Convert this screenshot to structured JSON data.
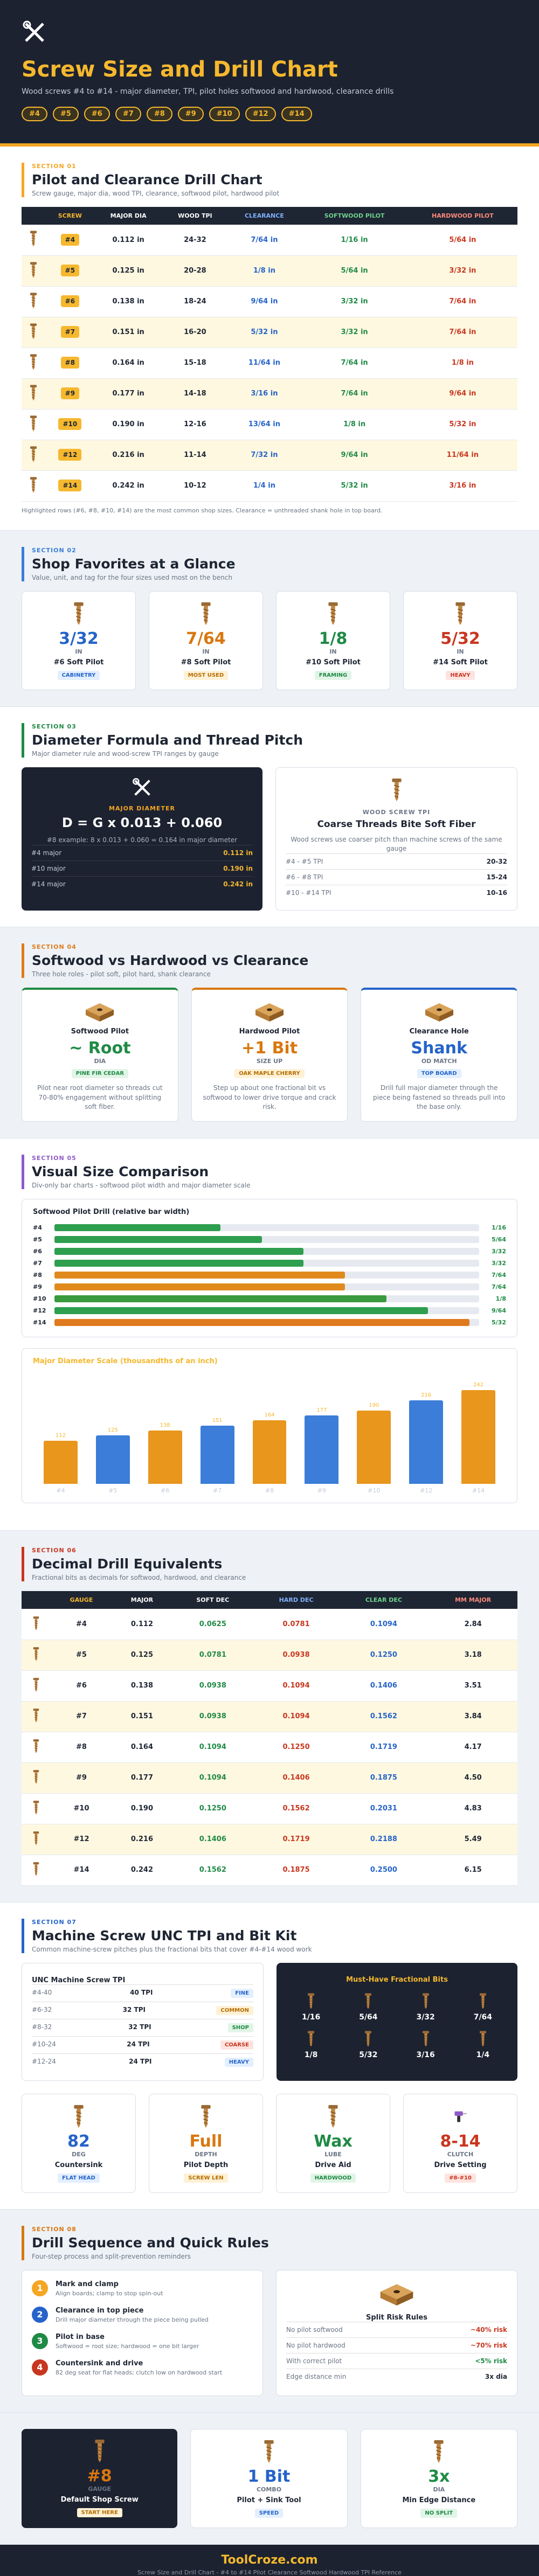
{
  "header": {
    "title": "Screw Size and Drill Chart",
    "subtitle": "Wood screws #4 to #14 - major diameter, TPI, pilot holes softwood and hardwood, clearance drills",
    "chips": [
      "#4",
      "#5",
      "#6",
      "#7",
      "#8",
      "#9",
      "#10",
      "#12",
      "#14"
    ]
  },
  "section1": {
    "label": "SECTION 01",
    "title": "Pilot and Clearance Drill Chart",
    "subtitle": "Screw gauge, major dia, wood TPI, clearance, softwood pilot, hardwood pilot",
    "columns": [
      "SCREW",
      "MAJOR DIA",
      "WOOD TPI",
      "CLEARANCE",
      "SOFTWOOD PILOT",
      "HARDWOOD PILOT"
    ],
    "rows": [
      [
        "#4",
        "0.112 in",
        "24-32",
        "7/64 in",
        "1/16 in",
        "5/64 in"
      ],
      [
        "#5",
        "0.125 in",
        "20-28",
        "1/8 in",
        "5/64 in",
        "3/32 in"
      ],
      [
        "#6",
        "0.138 in",
        "18-24",
        "9/64 in",
        "3/32 in",
        "7/64 in"
      ],
      [
        "#7",
        "0.151 in",
        "16-20",
        "5/32 in",
        "3/32 in",
        "7/64 in"
      ],
      [
        "#8",
        "0.164 in",
        "15-18",
        "11/64 in",
        "7/64 in",
        "1/8 in"
      ],
      [
        "#9",
        "0.177 in",
        "14-18",
        "3/16 in",
        "7/64 in",
        "9/64 in"
      ],
      [
        "#10",
        "0.190 in",
        "12-16",
        "13/64 in",
        "1/8 in",
        "5/32 in"
      ],
      [
        "#12",
        "0.216 in",
        "11-14",
        "7/32 in",
        "9/64 in",
        "11/64 in"
      ],
      [
        "#14",
        "0.242 in",
        "10-12",
        "1/4 in",
        "5/32 in",
        "3/16 in"
      ]
    ],
    "note": "Highlighted rows (#6, #8, #10, #14) are the most common shop sizes. Clearance = unthreaded shank hole in top board."
  },
  "section2": {
    "label": "SECTION 02",
    "title": "Shop Favorites at a Glance",
    "subtitle": "Value, unit, and tag for the four sizes used most on the bench",
    "cards": [
      {
        "value": "3/32",
        "unit": "IN",
        "name": "#6 Soft Pilot",
        "tag": "CABINETRY"
      },
      {
        "value": "7/64",
        "unit": "IN",
        "name": "#8 Soft Pilot",
        "tag": "MOST USED"
      },
      {
        "value": "1/8",
        "unit": "IN",
        "name": "#10 Soft Pilot",
        "tag": "FRAMING"
      },
      {
        "value": "5/32",
        "unit": "IN",
        "name": "#14 Soft Pilot",
        "tag": "HEAVY"
      }
    ]
  },
  "section3": {
    "label": "SECTION 03",
    "title": "Diameter Formula and Thread Pitch",
    "subtitle": "Major diameter rule and wood-screw TPI ranges by gauge",
    "formula": {
      "kicker": "MAJOR DIAMETER",
      "formula": "D = G x 0.013 + 0.060",
      "example": "#8 example: 8 x 0.013 + 0.060 = 0.164 in major diameter",
      "rows": [
        [
          "#4 major",
          "0.112 in"
        ],
        [
          "#10 major",
          "0.190 in"
        ],
        [
          "#14 major",
          "0.242 in"
        ]
      ]
    },
    "tpi": {
      "kicker": "WOOD SCREW TPI",
      "title": "Coarse Threads Bite Soft Fiber",
      "text": "Wood screws use coarser pitch than machine screws of the same gauge",
      "rows": [
        [
          "#4 - #5 TPI",
          "20-32"
        ],
        [
          "#6 - #8 TPI",
          "15-24"
        ],
        [
          "#10 - #14 TPI",
          "10-16"
        ]
      ]
    }
  },
  "section4": {
    "label": "SECTION 04",
    "title": "Softwood vs Hardwood vs Clearance",
    "subtitle": "Three hole roles - pilot soft, pilot hard, shank clearance",
    "cards": [
      {
        "name": "Softwood Pilot",
        "value": "~ Root",
        "unit": "DIA",
        "tag": "PINE FIR CEDAR",
        "text": "Pilot near root diameter so threads cut 70-80% engagement without splitting soft fiber."
      },
      {
        "name": "Hardwood Pilot",
        "value": "+1 Bit",
        "unit": "SIZE UP",
        "tag": "OAK MAPLE CHERRY",
        "text": "Step up about one fractional bit vs softwood to lower drive torque and crack risk."
      },
      {
        "name": "Clearance Hole",
        "value": "Shank",
        "unit": "OD MATCH",
        "tag": "TOP BOARD",
        "text": "Drill full major diameter through the piece being fastened so threads pull into the base only."
      }
    ]
  },
  "section5": {
    "label": "SECTION 05",
    "title": "Visual Size Comparison",
    "subtitle": "Div-only bar charts - softwood pilot width and major diameter scale",
    "charts": [
      {
        "type": "hbar",
        "title": "Softwood Pilot Drill (relative bar width)",
        "categories": [
          "#4",
          "#5",
          "#6",
          "#7",
          "#8",
          "#9",
          "#10",
          "#12",
          "#14"
        ],
        "values": [
          0.0625,
          0.078125,
          0.09375,
          0.09375,
          0.109375,
          0.109375,
          0.125,
          0.140625,
          0.15625
        ],
        "value_labels": [
          "1/16",
          "5/64",
          "3/32",
          "3/32",
          "7/64",
          "7/64",
          "1/8",
          "9/64",
          "5/32"
        ],
        "colors": [
          "#2e9e4f",
          "#2e9e4f",
          "#2e9e4f",
          "#2e9e4f",
          "#e08a1e",
          "#e08a1e",
          "#3a9a3e",
          "#2e9e4f",
          "#e07a1e"
        ],
        "xlim": [
          0,
          0.16
        ]
      },
      {
        "type": "vbar",
        "title": "Major Diameter Scale (thousandths of an inch)",
        "categories": [
          "#4",
          "#5",
          "#6",
          "#7",
          "#8",
          "#9",
          "#10",
          "#12",
          "#14"
        ],
        "values": [
          112,
          125,
          138,
          151,
          164,
          177,
          190,
          216,
          242
        ],
        "colors": [
          "#e8961c",
          "#3b7dd8",
          "#e8961c",
          "#3b7dd8",
          "#e8961c",
          "#3b7dd8",
          "#e8961c",
          "#3b7dd8",
          "#e8961c"
        ],
        "ylim": [
          0,
          250
        ]
      }
    ]
  },
  "section6": {
    "label": "SECTION 06",
    "title": "Decimal Drill Equivalents",
    "subtitle": "Fractional bits as decimals for softwood, hardwood, and clearance",
    "columns": [
      "GAUGE",
      "MAJOR",
      "SOFT DEC",
      "HARD DEC",
      "CLEAR DEC",
      "MM MAJOR"
    ],
    "rows": [
      [
        "#4",
        "0.112",
        "0.0625",
        "0.0781",
        "0.1094",
        "2.84"
      ],
      [
        "#5",
        "0.125",
        "0.0781",
        "0.0938",
        "0.1250",
        "3.18"
      ],
      [
        "#6",
        "0.138",
        "0.0938",
        "0.1094",
        "0.1406",
        "3.51"
      ],
      [
        "#7",
        "0.151",
        "0.0938",
        "0.1094",
        "0.1562",
        "3.84"
      ],
      [
        "#8",
        "0.164",
        "0.1094",
        "0.1250",
        "0.1719",
        "4.17"
      ],
      [
        "#9",
        "0.177",
        "0.1094",
        "0.1406",
        "0.1875",
        "4.50"
      ],
      [
        "#10",
        "0.190",
        "0.1250",
        "0.1562",
        "0.2031",
        "4.83"
      ],
      [
        "#12",
        "0.216",
        "0.1406",
        "0.1719",
        "0.2188",
        "5.49"
      ],
      [
        "#14",
        "0.242",
        "0.1562",
        "0.1875",
        "0.2500",
        "6.15"
      ]
    ]
  },
  "section7": {
    "label": "SECTION 07",
    "title": "Machine Screw UNC TPI and Bit Kit",
    "subtitle": "Common machine-screw pitches plus the fractional bits that cover #4-#14 wood work",
    "unc": {
      "title": "UNC Machine Screw TPI",
      "rows": [
        [
          "#4-40",
          "40 TPI",
          "FINE"
        ],
        [
          "#6-32",
          "32 TPI",
          "COMMON"
        ],
        [
          "#8-32",
          "32 TPI",
          "SHOP"
        ],
        [
          "#10-24",
          "24 TPI",
          "COARSE"
        ],
        [
          "#12-24",
          "24 TPI",
          "HEAVY"
        ]
      ]
    },
    "bits": {
      "title": "Must-Have Fractional Bits",
      "items": [
        "1/16",
        "5/64",
        "3/32",
        "7/64",
        "1/8",
        "5/32",
        "3/16",
        "1/4"
      ]
    },
    "cards": [
      {
        "value": "82",
        "unit": "DEG",
        "name": "Countersink",
        "tag": "FLAT HEAD"
      },
      {
        "value": "Full",
        "unit": "DEPTH",
        "name": "Pilot Depth",
        "tag": "SCREW LEN"
      },
      {
        "value": "Wax",
        "unit": "LUBE",
        "name": "Drive Aid",
        "tag": "HARDWOOD"
      },
      {
        "value": "8-14",
        "unit": "CLUTCH",
        "name": "Drive Setting",
        "tag": "#8-#10"
      }
    ]
  },
  "section8": {
    "label": "SECTION 08",
    "title": "Drill Sequence and Quick Rules",
    "subtitle": "Four-step process and split-prevention reminders",
    "steps": [
      {
        "num": "1",
        "title": "Mark and clamp",
        "text": "Align boards; clamp to stop spin-out"
      },
      {
        "num": "2",
        "title": "Clearance in top piece",
        "text": "Drill major diameter through the piece being pulled"
      },
      {
        "num": "3",
        "title": "Pilot in base",
        "text": "Softwood = root size; hardwood = one bit larger"
      },
      {
        "num": "4",
        "title": "Countersink and drive",
        "text": "82 deg seat for flat heads; clutch low on hardwood start"
      }
    ],
    "rules": {
      "title": "Split Risk Rules",
      "rows": [
        [
          "No pilot softwood",
          "~40% risk"
        ],
        [
          "No pilot hardwood",
          "~70% risk"
        ],
        [
          "With correct pilot",
          "<5% risk"
        ],
        [
          "Edge distance min",
          "3x dia"
        ]
      ]
    }
  },
  "summary": [
    {
      "value": "#8",
      "unit": "GAUGE",
      "name": "Default Shop Screw",
      "tag": "START HERE"
    },
    {
      "value": "1 Bit",
      "unit": "COMBO",
      "name": "Pilot + Sink Tool",
      "tag": "SPEED"
    },
    {
      "value": "3x",
      "unit": "DIA",
      "name": "Min Edge Distance",
      "tag": "NO SPLIT"
    }
  ],
  "footer": {
    "brand": "ToolCroze.com",
    "text": "Screw Size and Drill Chart - #4 to #14 Pilot Clearance Softwood Hardwood TPI Reference"
  }
}
